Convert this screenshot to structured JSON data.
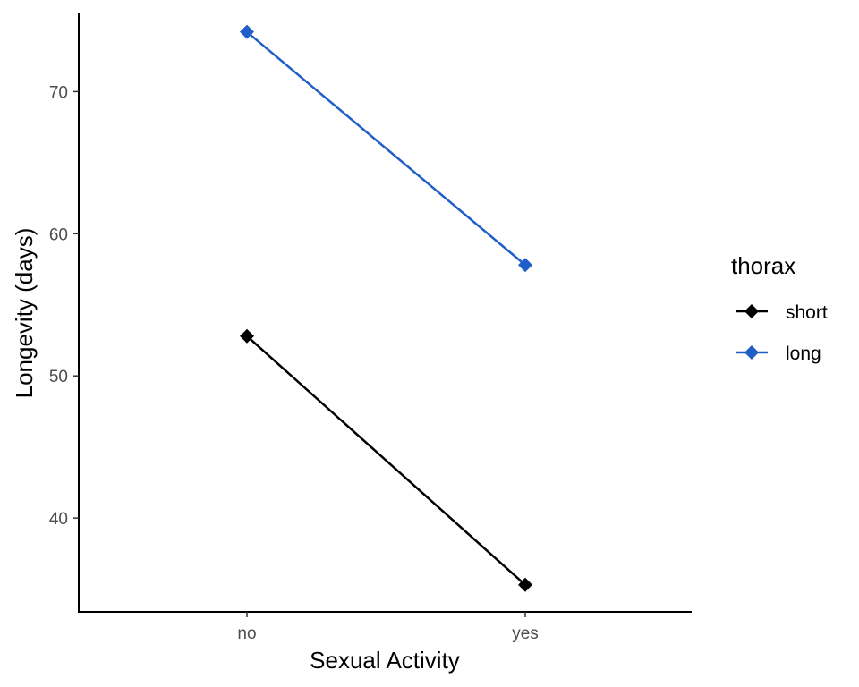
{
  "chart_data": {
    "type": "line",
    "categories": [
      "no",
      "yes"
    ],
    "series": [
      {
        "name": "short",
        "color": "#000000",
        "marker": "diamond",
        "values": [
          52.8,
          35.3
        ]
      },
      {
        "name": "long",
        "color": "#1f5fc7",
        "marker": "diamond",
        "values": [
          74.2,
          57.8
        ]
      }
    ],
    "xlabel": "Sexual Activity",
    "ylabel": "Longevity (days)",
    "ylim": [
      33.4,
      75.5
    ],
    "yticks": [
      40,
      50,
      60,
      70
    ],
    "legend": {
      "title": "thorax",
      "position": "right"
    },
    "grid": false
  }
}
